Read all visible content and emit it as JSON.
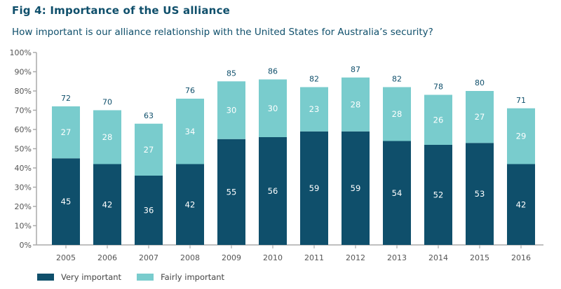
{
  "figure": {
    "title": "Fig 4: Importance of the US alliance",
    "subtitle": "How important is our alliance relationship with the United States for Australia’s security?"
  },
  "colors": {
    "very_important": "#0f4f6b",
    "fairly_important": "#79cccd",
    "axis": "#aaaaaa"
  },
  "chart_data": {
    "type": "bar",
    "stacked": true,
    "title": "Fig 4: Importance of the US alliance",
    "subtitle": "How important is our alliance relationship with the United States for Australia’s security?",
    "xlabel": "",
    "ylabel": "",
    "ylim": [
      0,
      100
    ],
    "yticks": [
      "0%",
      "10%",
      "20%",
      "30%",
      "40%",
      "50%",
      "60%",
      "70%",
      "80%",
      "90%",
      "100%"
    ],
    "categories": [
      "2005",
      "2006",
      "2007",
      "2008",
      "2009",
      "2010",
      "2011",
      "2012",
      "2013",
      "2014",
      "2015",
      "2016"
    ],
    "series": [
      {
        "name": "Very important",
        "values": [
          45,
          42,
          36,
          42,
          55,
          56,
          59,
          59,
          54,
          52,
          53,
          42
        ]
      },
      {
        "name": "Fairly important",
        "values": [
          27,
          28,
          27,
          34,
          30,
          30,
          23,
          28,
          28,
          26,
          27,
          29
        ]
      }
    ],
    "totals": [
      72,
      70,
      63,
      76,
      85,
      86,
      82,
      87,
      82,
      78,
      80,
      71
    ],
    "legend_position": "bottom-left",
    "grid": false
  },
  "legend": [
    {
      "label": "Very important"
    },
    {
      "label": "Fairly important"
    }
  ]
}
